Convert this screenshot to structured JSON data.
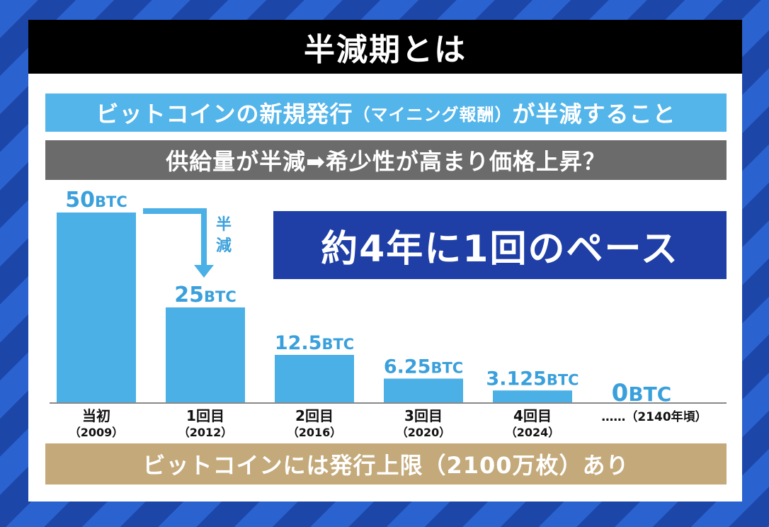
{
  "title": "半減期とは",
  "definition": {
    "part1": "ビットコインの新規発行",
    "part2": "（マイニング報酬）",
    "part3": "が半減すること"
  },
  "effect": "供給量が半減➡希少性が高まり価格上昇？",
  "pace": "約4年に1回のペース",
  "arrow_label": [
    "半",
    "減"
  ],
  "footer": "ビットコインには発行上限（2100万枚）あり",
  "colors": {
    "bar": "#4ab0e6",
    "label_blue": "#3aa0dc",
    "title_bg": "#000000",
    "definition_bg": "#53b5ea",
    "effect_bg": "#6b6b6b",
    "pace_bg": "#1f3fa6",
    "footer_bg": "#c4a97a"
  },
  "chart_data": {
    "type": "bar",
    "categories": [
      "当初",
      "1回目",
      "2回目",
      "3回目",
      "4回目",
      "……（2140年頃）"
    ],
    "category_years": [
      "（2009）",
      "（2012）",
      "（2016）",
      "（2020）",
      "（2024）",
      ""
    ],
    "values": [
      50,
      25,
      12.5,
      6.25,
      3.125,
      0
    ],
    "value_labels": [
      "50",
      "25",
      "12.5",
      "6.25",
      "3.125",
      "0"
    ],
    "unit": "BTC",
    "title": "",
    "xlabel": "",
    "ylabel": "",
    "ylim": [
      0,
      50
    ],
    "grid": false
  }
}
